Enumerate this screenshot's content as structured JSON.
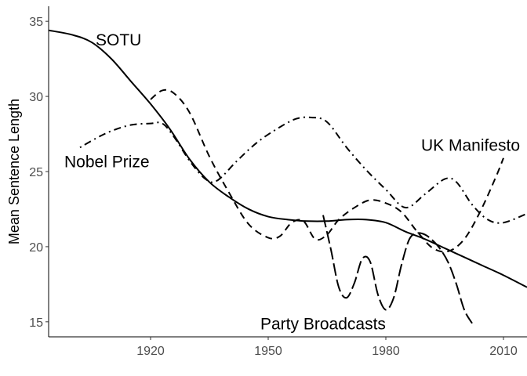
{
  "chart_data": {
    "type": "line",
    "title": "",
    "xlabel": "",
    "ylabel": "Mean Sentence Length",
    "xlim": [
      1894,
      2016
    ],
    "ylim": [
      14,
      36
    ],
    "xticks": [
      1920,
      1950,
      1980,
      2010
    ],
    "yticks": [
      15,
      20,
      25,
      30,
      35
    ],
    "grid": false,
    "legend": "none",
    "series": [
      {
        "name": "SOTU",
        "style": "solid",
        "x": [
          1894,
          1900,
          1905,
          1910,
          1915,
          1920,
          1925,
          1930,
          1935,
          1940,
          1945,
          1950,
          1955,
          1960,
          1965,
          1970,
          1975,
          1980,
          1985,
          1990,
          1995,
          2000,
          2005,
          2010,
          2016
        ],
        "y": [
          34.4,
          34.1,
          33.6,
          32.5,
          31.0,
          29.5,
          27.8,
          25.8,
          24.3,
          23.3,
          22.5,
          22.0,
          21.8,
          21.7,
          21.7,
          21.8,
          21.8,
          21.6,
          21.0,
          20.5,
          19.9,
          19.3,
          18.7,
          18.1,
          17.3
        ]
      },
      {
        "name": "Nobel Prize",
        "style": "dotdash",
        "x": [
          1902,
          1906,
          1910,
          1915,
          1920,
          1923,
          1926,
          1930,
          1934,
          1937,
          1942,
          1947,
          1952,
          1957,
          1961,
          1965,
          1970,
          1975,
          1980,
          1985,
          1990,
          1995,
          1998,
          2002,
          2006,
          2010,
          2016
        ],
        "y": [
          26.6,
          27.2,
          27.7,
          28.1,
          28.2,
          28.2,
          27.3,
          25.7,
          24.5,
          24.4,
          25.7,
          26.9,
          27.8,
          28.5,
          28.6,
          28.3,
          26.6,
          25.1,
          23.8,
          22.6,
          23.5,
          24.5,
          24.3,
          22.8,
          21.8,
          21.6,
          22.2
        ]
      },
      {
        "name": "UK Manifesto",
        "style": "dashed",
        "x": [
          1920,
          1923,
          1926,
          1930,
          1935,
          1940,
          1945,
          1950,
          1953,
          1956,
          1959,
          1962,
          1965,
          1968,
          1972,
          1976,
          1980,
          1984,
          1988,
          1992,
          1996,
          2000,
          2004,
          2008,
          2010
        ],
        "y": [
          29.8,
          30.4,
          30.2,
          28.9,
          26.0,
          23.6,
          21.5,
          20.6,
          20.7,
          21.6,
          21.7,
          20.5,
          20.8,
          21.8,
          22.6,
          23.1,
          22.9,
          22.3,
          21.0,
          19.9,
          19.7,
          20.5,
          22.3,
          24.6,
          25.9
        ]
      },
      {
        "name": "Party Broadcasts",
        "style": "longdash",
        "x": [
          1964,
          1966,
          1968,
          1970,
          1972,
          1974,
          1976,
          1978,
          1980,
          1982,
          1984,
          1986,
          1988,
          1990,
          1992,
          1994,
          1996,
          1998,
          2000,
          2002
        ],
        "y": [
          22.1,
          19.8,
          17.3,
          16.6,
          17.6,
          19.2,
          19.0,
          16.8,
          15.8,
          16.6,
          18.8,
          20.5,
          20.9,
          20.8,
          20.4,
          19.8,
          18.9,
          17.5,
          15.8,
          14.9
        ]
      }
    ],
    "annotations": [
      {
        "text": "SOTU",
        "x": 1906,
        "y": 33.8
      },
      {
        "text": "Nobel Prize",
        "x": 1898,
        "y": 25.7
      },
      {
        "text": "UK Manifesto",
        "x": 1989,
        "y": 26.8
      },
      {
        "text": "Party Broadcasts",
        "x": 1948,
        "y": 14.9
      }
    ]
  }
}
